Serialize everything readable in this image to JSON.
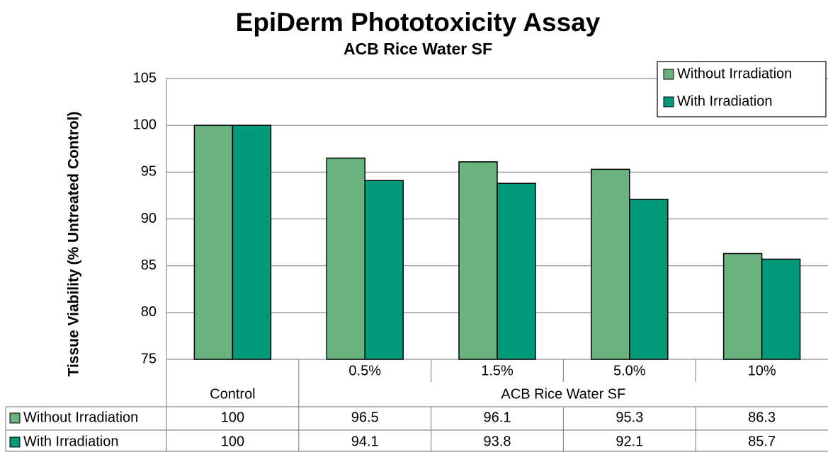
{
  "chart_data": {
    "type": "bar",
    "title": "EpiDerm Phototoxicity Assay",
    "subtitle": "ACB Rice Water SF",
    "y_label": "Tissue Viability  (% Untreated Control)",
    "categories": [
      "Control",
      "0.5%",
      "1.5%",
      "5.0%",
      "10%"
    ],
    "category_group": "ACB Rice Water SF",
    "series": [
      {
        "name": "Without Irradiation",
        "color": "#6ab27f",
        "values": [
          100,
          96.5,
          96.1,
          95.3,
          86.3
        ]
      },
      {
        "name": "With Irradiation",
        "color": "#009a7a",
        "values": [
          100,
          94.1,
          93.8,
          92.1,
          85.7
        ]
      }
    ],
    "ylim": [
      75,
      105
    ],
    "yticks": [
      75,
      80,
      85,
      90,
      95,
      100,
      105
    ],
    "grid": true,
    "legend": "top-right"
  }
}
